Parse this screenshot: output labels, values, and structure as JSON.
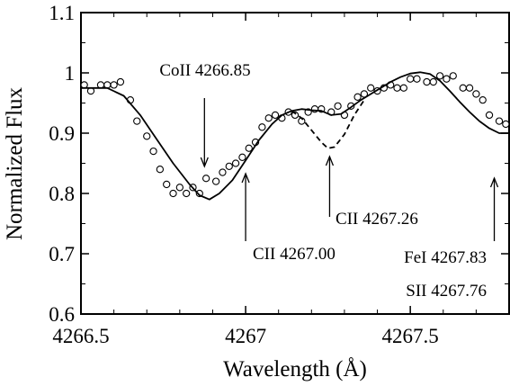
{
  "chart_data": {
    "type": "line",
    "title": "",
    "xlabel": "Wavelength (Å)",
    "ylabel": "Normalized Flux",
    "xlim": [
      4266.5,
      4267.8
    ],
    "ylim": [
      0.6,
      1.1
    ],
    "x_ticks": [
      4266.5,
      4267,
      4267.5
    ],
    "x_tick_labels": [
      "4266.5",
      "4267",
      "4267.5"
    ],
    "y_ticks": [
      0.6,
      0.7,
      0.8,
      0.9,
      1.0,
      1.1
    ],
    "y_tick_labels": [
      "0.6",
      "0.7",
      "0.8",
      "0.9",
      "1",
      "1.1"
    ],
    "grid": false,
    "series": [
      {
        "style": "open-circles",
        "x": [
          4266.51,
          4266.53,
          4266.56,
          4266.58,
          4266.6,
          4266.62,
          4266.65,
          4266.67,
          4266.7,
          4266.72,
          4266.74,
          4266.76,
          4266.78,
          4266.8,
          4266.82,
          4266.84,
          4266.86,
          4266.88,
          4266.91,
          4266.93,
          4266.95,
          4266.97,
          4266.99,
          4267.01,
          4267.03,
          4267.05,
          4267.07,
          4267.09,
          4267.11,
          4267.13,
          4267.15,
          4267.17,
          4267.19,
          4267.21,
          4267.23,
          4267.26,
          4267.28,
          4267.3,
          4267.32,
          4267.34,
          4267.36,
          4267.38,
          4267.4,
          4267.42,
          4267.44,
          4267.46,
          4267.48,
          4267.5,
          4267.52,
          4267.55,
          4267.57,
          4267.59,
          4267.61,
          4267.63,
          4267.66,
          4267.68,
          4267.7,
          4267.72,
          4267.74,
          4267.77,
          4267.79
        ],
        "y": [
          0.98,
          0.97,
          0.98,
          0.98,
          0.98,
          0.985,
          0.955,
          0.92,
          0.895,
          0.87,
          0.84,
          0.815,
          0.8,
          0.81,
          0.8,
          0.81,
          0.8,
          0.825,
          0.82,
          0.835,
          0.845,
          0.85,
          0.86,
          0.875,
          0.885,
          0.91,
          0.925,
          0.93,
          0.925,
          0.935,
          0.93,
          0.92,
          0.935,
          0.94,
          0.94,
          0.935,
          0.945,
          0.93,
          0.945,
          0.96,
          0.965,
          0.975,
          0.97,
          0.975,
          0.98,
          0.975,
          0.975,
          0.99,
          0.99,
          0.985,
          0.985,
          0.995,
          0.99,
          0.995,
          0.975,
          0.975,
          0.965,
          0.955,
          0.93,
          0.92,
          0.915
        ]
      },
      {
        "style": "solid",
        "x": [
          4266.5,
          4266.58,
          4266.63,
          4266.68,
          4266.73,
          4266.78,
          4266.83,
          4266.86,
          4266.89,
          4266.92,
          4266.96,
          4267.0,
          4267.04,
          4267.08,
          4267.11,
          4267.14,
          4267.17,
          4267.2,
          4267.23,
          4267.26,
          4267.29,
          4267.32,
          4267.35,
          4267.38,
          4267.41,
          4267.44,
          4267.47,
          4267.5,
          4267.53,
          4267.56,
          4267.59,
          4267.62,
          4267.65,
          4267.68,
          4267.71,
          4267.74,
          4267.77,
          4267.8
        ],
        "y": [
          0.975,
          0.975,
          0.962,
          0.93,
          0.89,
          0.85,
          0.815,
          0.797,
          0.79,
          0.8,
          0.822,
          0.855,
          0.888,
          0.915,
          0.93,
          0.937,
          0.94,
          0.938,
          0.937,
          0.93,
          0.932,
          0.943,
          0.955,
          0.965,
          0.975,
          0.985,
          0.993,
          0.999,
          1.001,
          0.998,
          0.987,
          0.97,
          0.952,
          0.935,
          0.92,
          0.908,
          0.9,
          0.9
        ]
      },
      {
        "style": "dashed",
        "x": [
          4267.14,
          4267.17,
          4267.2,
          4267.23,
          4267.25,
          4267.27,
          4267.3,
          4267.33,
          4267.36
        ],
        "y": [
          0.937,
          0.925,
          0.905,
          0.885,
          0.875,
          0.877,
          0.898,
          0.93,
          0.955
        ]
      }
    ],
    "annotations": [
      {
        "label": "CoII 4266.85",
        "x": 4266.875,
        "y": 0.855,
        "arrow": "down"
      },
      {
        "label": "CII 4267.00",
        "x": 4267.0,
        "y": 0.855,
        "arrow": "up"
      },
      {
        "label": "CII 4267.26",
        "x": 4267.255,
        "y": 0.86,
        "arrow": "up"
      },
      {
        "label": "FeI 4267.83",
        "x": 4267.755,
        "y": 0.82,
        "arrow": "up"
      },
      {
        "label": "SII 4267.76",
        "x": 4267.755,
        "y": 0.82,
        "arrow": "none"
      }
    ]
  }
}
